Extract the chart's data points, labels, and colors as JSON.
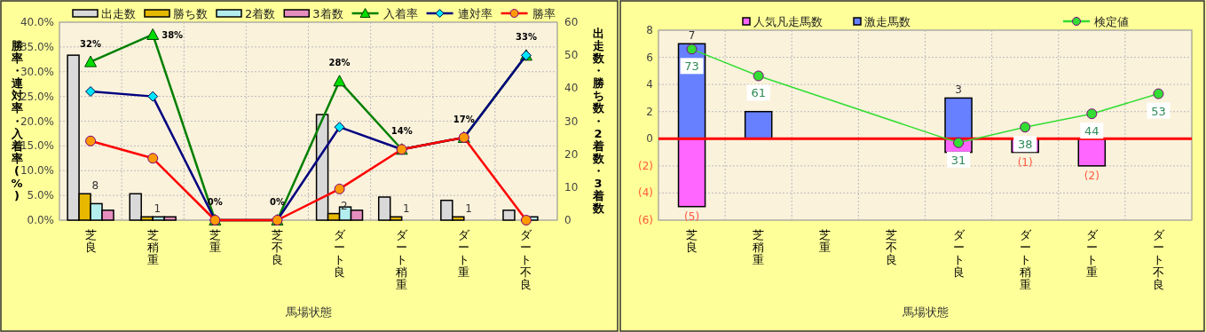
{
  "chart_data": [
    {
      "type": "bar",
      "categories": [
        "芝良",
        "芝稍重",
        "芝重",
        "芝不良",
        "ダート良",
        "ダート稍重",
        "ダート重",
        "ダート不良"
      ],
      "xlabel": "馬場状態",
      "ylabel": "勝率・連対率・入着率(%)",
      "y2label": "出走数・勝ち数・2着数・3着数",
      "ylim": [
        0,
        40
      ],
      "yticks": [
        {
          "value": 0,
          "label": "0.0%"
        },
        {
          "value": 5,
          "label": "5.0%"
        },
        {
          "value": 10,
          "label": "10.0%"
        },
        {
          "value": 15,
          "label": "15.0%"
        },
        {
          "value": 20,
          "label": "20.0%"
        },
        {
          "value": 25,
          "label": "25.0%"
        },
        {
          "value": 30,
          "label": "30.0%"
        },
        {
          "value": 35,
          "label": "35.0%"
        },
        {
          "value": 40,
          "label": "40.0%"
        }
      ],
      "y2lim": [
        0,
        60
      ],
      "y2ticks": [
        0,
        10,
        20,
        30,
        40,
        50,
        60
      ],
      "grid": true,
      "legend": "top",
      "series": [
        {
          "name": "出走数",
          "type": "bar",
          "axis": "y2",
          "color": "#d9d9d9",
          "values": [
            50,
            8,
            0,
            0,
            32,
            7,
            6,
            3
          ]
        },
        {
          "name": "勝ち数",
          "type": "bar",
          "axis": "y2",
          "color": "#e6b800",
          "values": [
            8,
            1,
            0,
            0,
            2,
            1,
            1,
            0
          ],
          "value_labels": [
            "8",
            "1",
            null,
            null,
            "2",
            "1",
            "1",
            null
          ]
        },
        {
          "name": "2着数",
          "type": "bar",
          "axis": "y2",
          "color": "#b3eeee",
          "values": [
            5,
            1,
            0,
            0,
            4,
            0,
            0,
            1
          ]
        },
        {
          "name": "3着数",
          "type": "bar",
          "axis": "y2",
          "color": "#e68fbf",
          "values": [
            3,
            1,
            0,
            0,
            3,
            0,
            0,
            0
          ]
        },
        {
          "name": "入着率",
          "type": "line",
          "color": "#008000",
          "marker": "triangle",
          "values": [
            32,
            37.5,
            0,
            0,
            28.1,
            14.3,
            16.7,
            33.3
          ],
          "value_labels": [
            "32%",
            "38%",
            "0%",
            "0%",
            "28%",
            "14%",
            "17%",
            "33%"
          ]
        },
        {
          "name": "連対率",
          "type": "line",
          "color": "#000080",
          "marker": "diamond",
          "values": [
            26,
            25,
            0,
            0,
            18.8,
            14.3,
            16.7,
            33.3
          ]
        },
        {
          "name": "勝率",
          "type": "line",
          "color": "#ff0000",
          "marker": "circle",
          "values": [
            16,
            12.5,
            0,
            0,
            6.3,
            14.3,
            16.7,
            0
          ]
        }
      ]
    },
    {
      "type": "bar",
      "stacked": true,
      "categories": [
        "芝良",
        "芝稍重",
        "芝重",
        "芝不良",
        "ダート良",
        "ダート稍重",
        "ダート重",
        "ダート不良"
      ],
      "xlabel": "馬場状態",
      "ylim": [
        -6,
        8
      ],
      "yticks": [
        {
          "value": -6,
          "label": "(6)"
        },
        {
          "value": -4,
          "label": "(4)"
        },
        {
          "value": -2,
          "label": "(2)"
        },
        0,
        2,
        4,
        6,
        8
      ],
      "y2lim": [
        -3.7,
        81.5
      ],
      "grid": true,
      "legend": "top",
      "ref_lines": [
        {
          "axis": "y",
          "value": 0,
          "color": "#ff0000"
        }
      ],
      "series": [
        {
          "name": "人気凡走馬数",
          "type": "bar",
          "color": "#ff66ff",
          "values": [
            -5,
            0,
            0,
            0,
            -1,
            -1,
            -2,
            0
          ],
          "value_labels": [
            "(5)",
            null,
            null,
            null,
            null,
            "(1)",
            "(2)",
            null
          ]
        },
        {
          "name": "激走馬数",
          "type": "bar",
          "color": "#6680ff",
          "values": [
            7,
            2,
            0,
            0,
            3,
            0,
            0,
            0
          ],
          "value_labels": [
            "7",
            null,
            null,
            null,
            "3",
            null,
            null,
            null
          ]
        },
        {
          "name": "検定値",
          "type": "line",
          "axis": "y2",
          "color": "#33dd33",
          "marker": "circle",
          "x": [
            "芝良",
            "芝稍重",
            "ダート良",
            "ダート稍重",
            "ダート重",
            "ダート不良"
          ],
          "values": [
            73,
            61,
            31,
            38,
            44,
            53
          ],
          "value_labels": [
            "73",
            "61",
            "31",
            "38",
            "44",
            "53"
          ]
        }
      ]
    }
  ]
}
